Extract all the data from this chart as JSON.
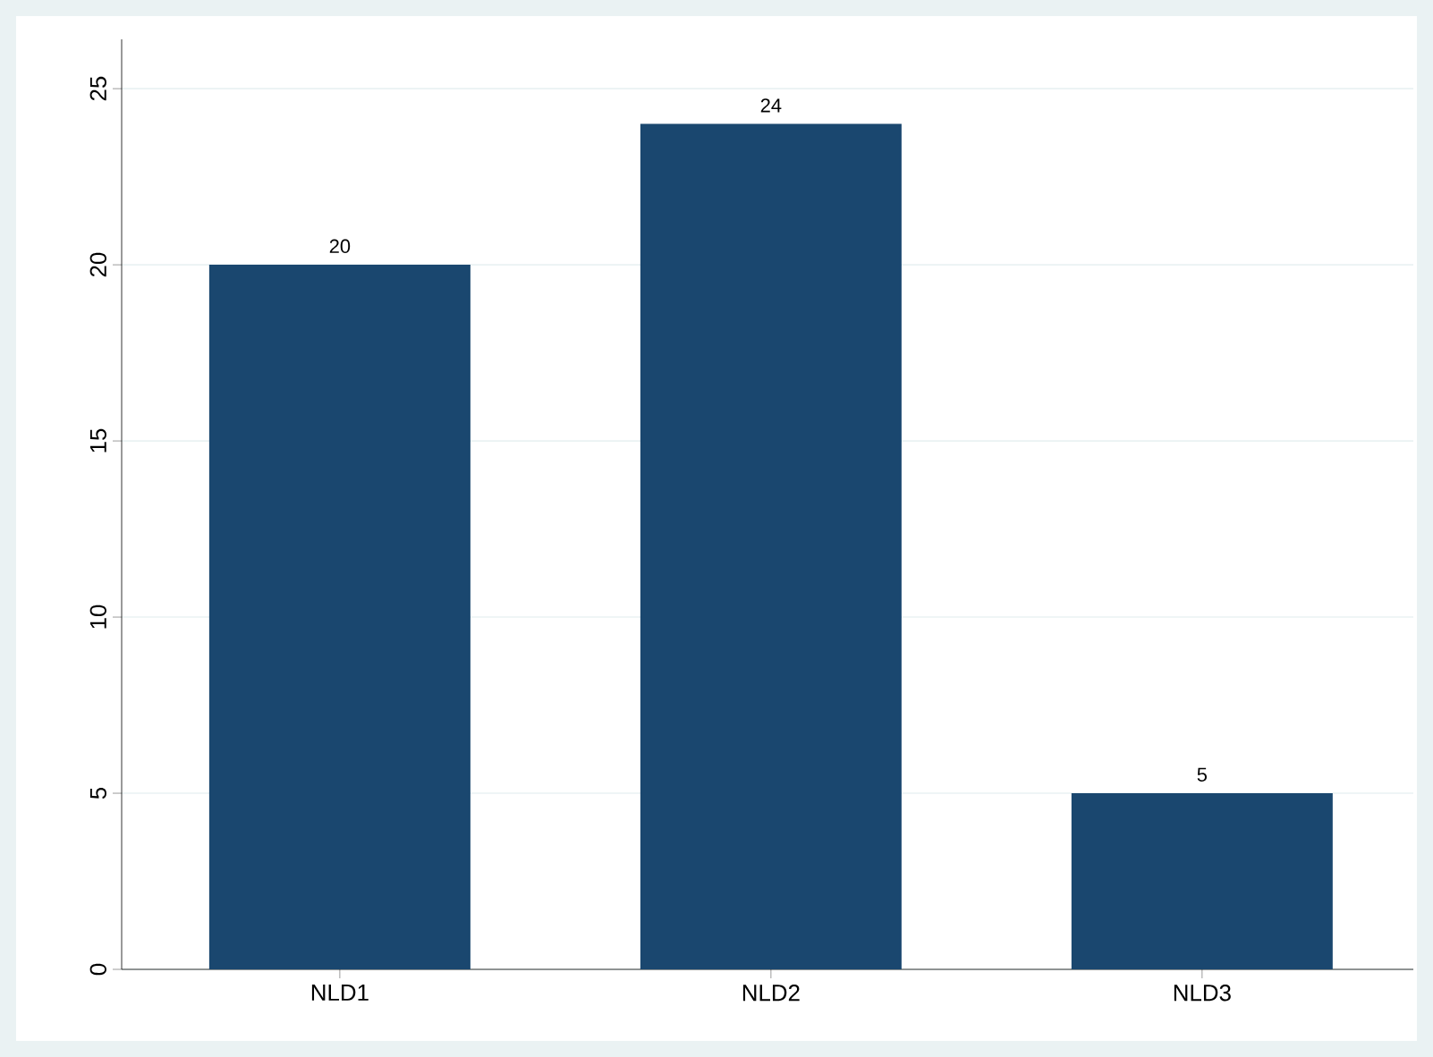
{
  "chart_data": {
    "type": "bar",
    "categories": [
      "NLD1",
      "NLD2",
      "NLD3"
    ],
    "values": [
      20,
      24,
      5
    ],
    "color": "#1a476f",
    "ylim": [
      0,
      26.4
    ],
    "yticks": [
      0,
      5,
      10,
      15,
      20,
      25
    ],
    "grid": "y",
    "data_labels": true
  }
}
